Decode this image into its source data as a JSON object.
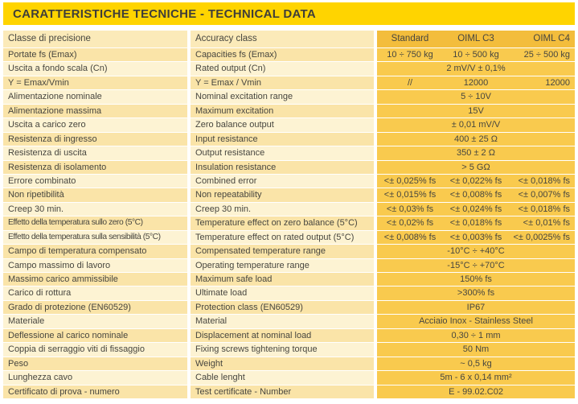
{
  "banner": {
    "title": "CARATTERISTICHE TECNICHE - TECHNICAL DATA"
  },
  "colors": {
    "banner_bg": "#ffd400",
    "header_label_bg": "#fbeab9",
    "row_tan_bg": "#fae4a8",
    "row_pale_bg": "#fdf3d3",
    "value_header_bg": "#f3bd3c",
    "value_bg": "#f9ca4e",
    "text": "#47463f"
  },
  "table": {
    "header": {
      "italian": "Classe di precisione",
      "english": "Accuracy class",
      "standard": "Standard",
      "oiml_c3": "OIML C3",
      "oiml_c4": "OIML C4"
    },
    "rows": [
      {
        "it": "Portate fs (Emax)",
        "en": "Capacities fs (Emax)",
        "values": [
          "10 ÷ 750 kg",
          "10 ÷ 500 kg",
          "25 ÷ 500 kg"
        ]
      },
      {
        "it": "Uscita a fondo scala (Cn)",
        "en": "Rated output (Cn)",
        "span": "2 mV/V ± 0,1%"
      },
      {
        "it": "Y = Emax/Vmin",
        "en": "Y = Emax / Vmin",
        "values": [
          "//",
          "12000",
          "12000"
        ]
      },
      {
        "it": "Alimentazione nominale",
        "en": "Nominal excitation range",
        "span": "5 ÷ 10V"
      },
      {
        "it": "Alimentazione massima",
        "en": "Maximum excitation",
        "span": "15V"
      },
      {
        "it": "Uscita a carico zero",
        "en": "Zero balance output",
        "span": "± 0,01 mV/V"
      },
      {
        "it": "Resistenza di ingresso",
        "en": "Input resistance",
        "span": "400 ± 25 Ω"
      },
      {
        "it": "Resistenza di uscita",
        "en": "Output resistance",
        "span": "350 ± 2 Ω"
      },
      {
        "it": "Resistenza di isolamento",
        "en": "Insulation resistance",
        "span": "> 5 GΩ"
      },
      {
        "it": "Errore combinato",
        "en": "Combined error",
        "values": [
          "<± 0,025% fs",
          "<± 0,022% fs",
          "<± 0,018% fs"
        ]
      },
      {
        "it": "Non ripetibilità",
        "en": "Non repeatability",
        "values": [
          "<± 0,015% fs",
          "<± 0,008% fs",
          "<± 0,007% fs"
        ]
      },
      {
        "it": "Creep 30 min.",
        "en": "Creep 30 min.",
        "values": [
          "<± 0,03% fs",
          "<± 0,024% fs",
          "<± 0,018% fs"
        ]
      },
      {
        "it": "Effetto della temperatura sullo zero (5°C)",
        "en": "Temperature effect on zero balance (5°C)",
        "values": [
          "<± 0,02% fs",
          "<± 0,018% fs",
          "<± 0,01% fs"
        ]
      },
      {
        "it": "Effetto della temperatura sulla sensibilità (5°C)",
        "en": "Temperature effect on rated output (5°C)",
        "values": [
          "<± 0,008% fs",
          "<± 0,003% fs",
          "<± 0,0025% fs"
        ]
      },
      {
        "it": "Campo di temperatura compensato",
        "en": "Compensated temperature range",
        "span": "-10°C ÷ +40°C"
      },
      {
        "it": "Campo massimo di lavoro",
        "en": "Operating temperature range",
        "span": "-15°C ÷ +70°C"
      },
      {
        "it": "Massimo carico ammissibile",
        "en": "Maximum safe load",
        "span": "150% fs"
      },
      {
        "it": "Carico di rottura",
        "en": "Ultimate load",
        "span": ">300% fs"
      },
      {
        "it": "Grado di protezione (EN60529)",
        "en": "Protection class (EN60529)",
        "span": "IP67"
      },
      {
        "it": "Materiale",
        "en": "Material",
        "span": "Acciaio Inox - Stainless Steel"
      },
      {
        "it": "Deflessione al carico nominale",
        "en": "Displacement at nominal load",
        "span": "0,30 ÷ 1 mm"
      },
      {
        "it": "Coppia di serraggio viti di fissaggio",
        "en": "Fixing screws tightening torque",
        "span": "50 Nm"
      },
      {
        "it": "Peso",
        "en": "Weight",
        "span": "~ 0,5 kg"
      },
      {
        "it": "Lunghezza cavo",
        "en": "Cable lenght",
        "span": "5m - 6 x 0,14 mm²"
      },
      {
        "it": "Certificato di prova - numero",
        "en": "Test certificate - Number",
        "span": "E - 99.02.C02"
      }
    ]
  }
}
